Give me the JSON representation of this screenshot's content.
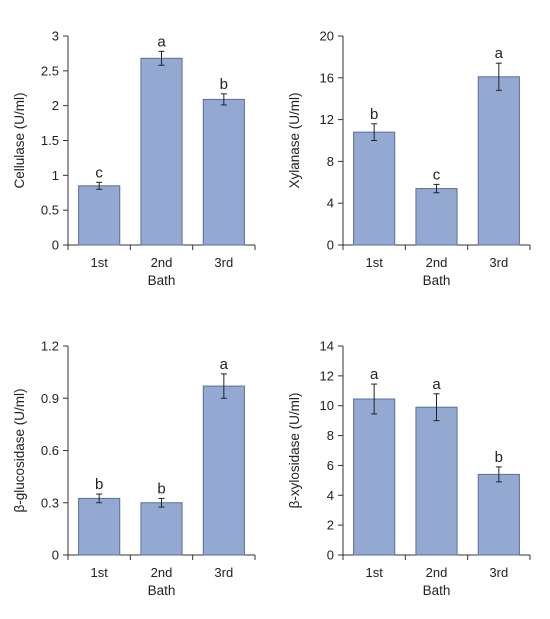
{
  "bar_color": "#94a9d2",
  "bar_edge_color": "#5a6f99",
  "axis_color": "#333333",
  "chart_data": [
    {
      "type": "bar",
      "categories": [
        "1st",
        "2nd",
        "3rd"
      ],
      "values": [
        0.85,
        2.68,
        2.09
      ],
      "errors": [
        0.05,
        0.1,
        0.08
      ],
      "significance": [
        "c",
        "a",
        "b"
      ],
      "xlabel": "Bath",
      "ylabel": "Cellulase (U/ml)",
      "ylim": [
        0,
        3
      ],
      "yticks": [
        0,
        0.5,
        1,
        1.5,
        2,
        2.5,
        3
      ],
      "ytick_labels": [
        "0",
        "0.5",
        "1",
        "1.5",
        "2",
        "2.5",
        "3"
      ]
    },
    {
      "type": "bar",
      "categories": [
        "1st",
        "2nd",
        "3rd"
      ],
      "values": [
        10.8,
        5.4,
        16.1
      ],
      "errors": [
        0.8,
        0.4,
        1.3
      ],
      "significance": [
        "b",
        "c",
        "a"
      ],
      "xlabel": "Bath",
      "ylabel": "Xylanase (U/ml)",
      "ylim": [
        0,
        20
      ],
      "yticks": [
        0,
        4,
        8,
        12,
        16,
        20
      ],
      "ytick_labels": [
        "0",
        "4",
        "8",
        "12",
        "16",
        "20"
      ]
    },
    {
      "type": "bar",
      "categories": [
        "1st",
        "2nd",
        "3rd"
      ],
      "values": [
        0.325,
        0.3,
        0.97
      ],
      "errors": [
        0.025,
        0.025,
        0.07
      ],
      "significance": [
        "b",
        "b",
        "a"
      ],
      "xlabel": "Bath",
      "ylabel": "β-glucosidase (U/ml)",
      "ylim": [
        0,
        1.2
      ],
      "yticks": [
        0,
        0.3,
        0.6,
        0.9,
        1.2
      ],
      "ytick_labels": [
        "0",
        "0.3",
        "0.6",
        "0.9",
        "1.2"
      ]
    },
    {
      "type": "bar",
      "categories": [
        "1st",
        "2nd",
        "3rd"
      ],
      "values": [
        10.45,
        9.9,
        5.4
      ],
      "errors": [
        1.0,
        0.9,
        0.5
      ],
      "significance": [
        "a",
        "a",
        "b"
      ],
      "xlabel": "Bath",
      "ylabel": "β-xylosidase (U/ml)",
      "ylim": [
        0,
        14
      ],
      "yticks": [
        0,
        2,
        4,
        6,
        8,
        10,
        12,
        14
      ],
      "ytick_labels": [
        "0",
        "2",
        "4",
        "6",
        "8",
        "10",
        "12",
        "14"
      ]
    }
  ]
}
